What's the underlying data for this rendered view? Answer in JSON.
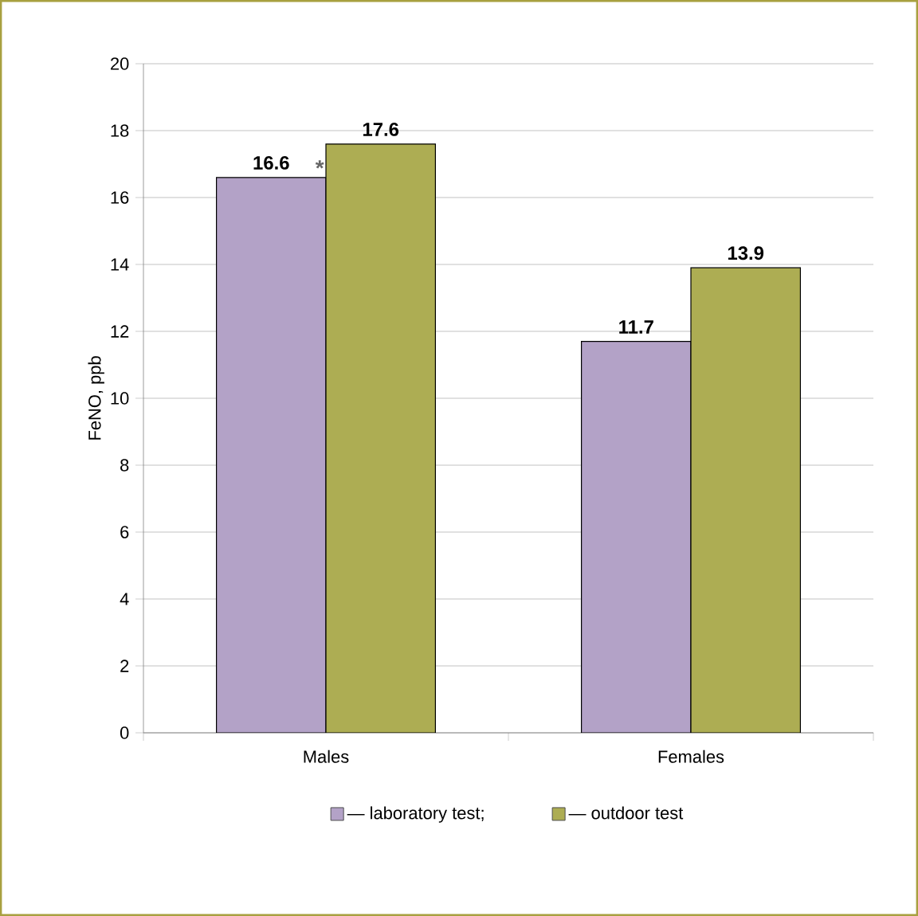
{
  "chart_data": {
    "type": "bar",
    "ylabel": "FeNO, ppb",
    "categories": [
      "Males",
      "Females"
    ],
    "series": [
      {
        "name": "— laboratory test;",
        "color": "#b3a2c7",
        "values": [
          16.6,
          11.7
        ]
      },
      {
        "name": "— outdoor test",
        "color": "#adad53",
        "values": [
          17.6,
          13.9
        ]
      }
    ],
    "ylim": [
      0,
      20
    ],
    "yticks": [
      0,
      2,
      4,
      6,
      8,
      10,
      12,
      14,
      16,
      18,
      20
    ],
    "grid": "y",
    "legend": "bottom",
    "data_labels": true,
    "annotations": [
      {
        "text": "*",
        "x": "Males",
        "y": 16.6
      }
    ]
  }
}
